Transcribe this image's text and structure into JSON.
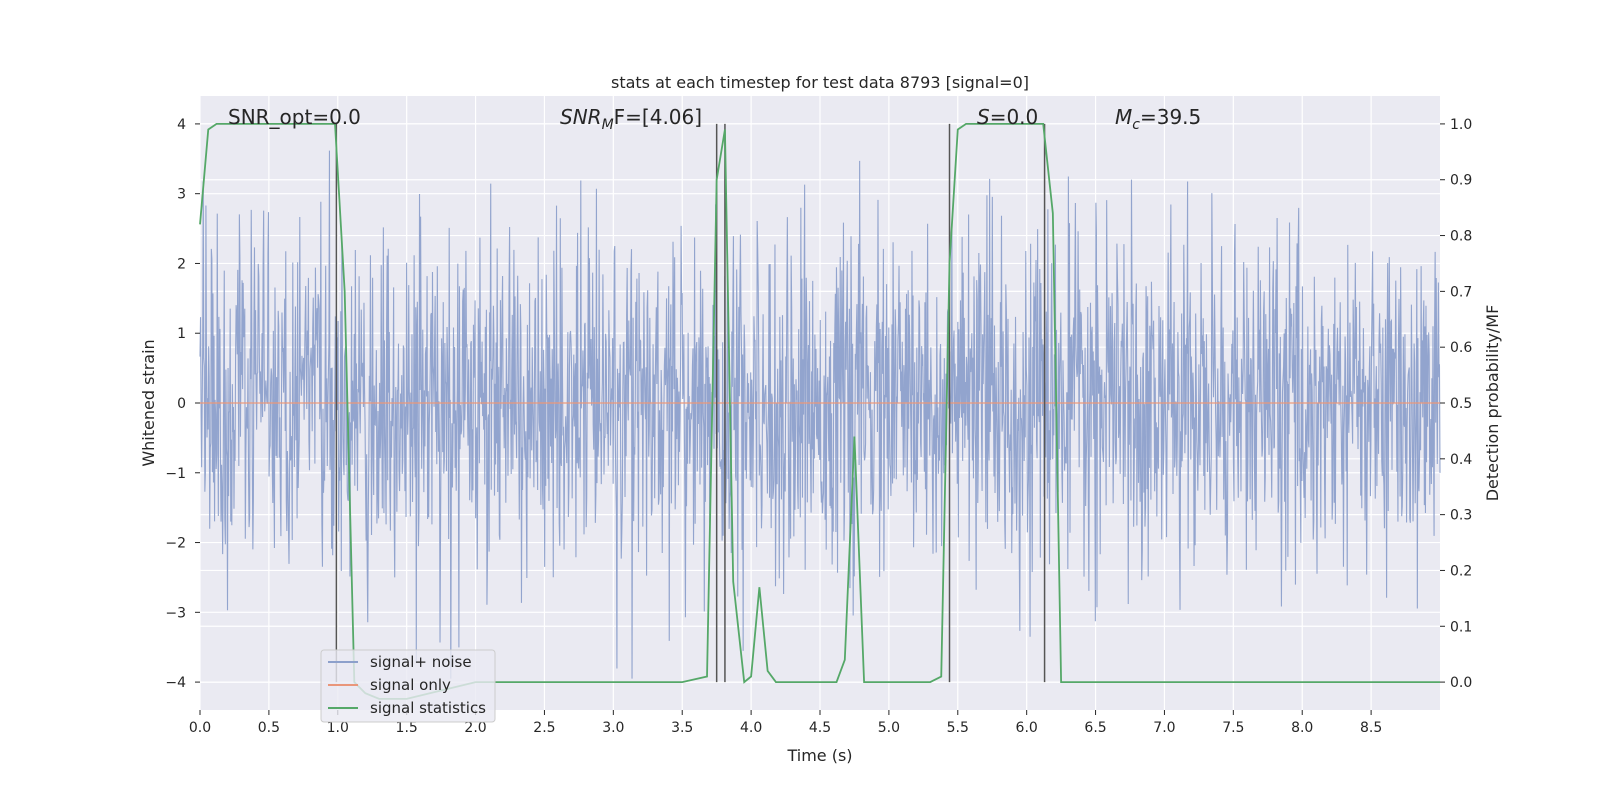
{
  "chart_data": {
    "type": "line",
    "title": "stats at each timestep for test data 8793 [signal=0]",
    "xlabel": "Time (s)",
    "ylabel": "Whitened strain",
    "y2label": "Detection probability/MF",
    "xlim": [
      0,
      9.0
    ],
    "ylim": [
      -4.4,
      4.4
    ],
    "y2lim": [
      -0.05,
      1.05
    ],
    "xticks": [
      "0.0",
      "0.5",
      "1.0",
      "1.5",
      "2.0",
      "2.5",
      "3.0",
      "3.5",
      "4.0",
      "4.5",
      "5.0",
      "5.5",
      "6.0",
      "6.5",
      "7.0",
      "7.5",
      "8.0",
      "8.5"
    ],
    "yticks": [
      "4",
      "3",
      "2",
      "1",
      "0",
      "−1",
      "−2",
      "−3",
      "−4"
    ],
    "y2ticks": [
      "1.0",
      "0.9",
      "0.8",
      "0.7",
      "0.6",
      "0.5",
      "0.4",
      "0.3",
      "0.2",
      "0.1",
      "0.0"
    ],
    "grid": true,
    "legend_position": "lower-left",
    "annotations": {
      "snr_opt": "SNR_opt=0.0",
      "snr_mf_base": "SNR",
      "snr_mf_sub": "M",
      "snr_mf_rest": "F=[4.06]",
      "s_label": "S",
      "s_value": "=0.0",
      "mc_base": "M",
      "mc_sub": "c",
      "mc_value": "=39.5"
    },
    "vertical_lines_x": [
      0.99,
      3.75,
      3.81,
      5.44,
      6.13
    ],
    "series": [
      {
        "name": "signal+ noise",
        "color": "#8da0cb",
        "axis": "left",
        "description_values": "noise fluctuations mostly within [-2.5, 3.5], std ~1"
      },
      {
        "name": "signal only",
        "color": "#e9967a",
        "axis": "left",
        "x": [
          0,
          9.0
        ],
        "values": [
          0,
          0
        ]
      },
      {
        "name": "signal statistics",
        "color": "#55a868",
        "axis": "right",
        "x": [
          0.0,
          0.06,
          0.12,
          0.25,
          0.5,
          0.75,
          0.98,
          1.05,
          1.12,
          1.2,
          1.3,
          1.5,
          2.0,
          2.3,
          2.5,
          3.0,
          3.5,
          3.68,
          3.75,
          3.81,
          3.87,
          3.95,
          4.0,
          4.06,
          4.12,
          4.18,
          4.5,
          4.62,
          4.68,
          4.75,
          4.82,
          5.0,
          5.3,
          5.38,
          5.44,
          5.5,
          5.56,
          5.8,
          6.0,
          6.12,
          6.19,
          6.25,
          6.32,
          7.0,
          8.0,
          9.0
        ],
        "values": [
          0.82,
          0.99,
          1.0,
          1.0,
          1.0,
          1.0,
          1.0,
          0.7,
          0.0,
          -0.02,
          -0.03,
          -0.03,
          0.0,
          0.0,
          0.0,
          0.0,
          0.0,
          0.01,
          0.9,
          0.99,
          0.18,
          0.0,
          0.01,
          0.17,
          0.02,
          0.0,
          0.0,
          0.0,
          0.04,
          0.44,
          0.0,
          0.0,
          0.0,
          0.01,
          0.75,
          0.99,
          1.0,
          1.0,
          1.0,
          1.0,
          0.84,
          0.0,
          0.0,
          0.0,
          0.0,
          0.0
        ]
      }
    ]
  }
}
